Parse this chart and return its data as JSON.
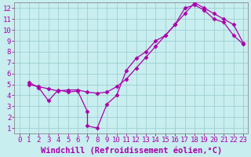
{
  "background_color": "#c8eef0",
  "grid_color": "#9fcfcf",
  "line_color": "#aa00aa",
  "marker": "D",
  "marker_size": 2.5,
  "line_width": 0.9,
  "xlim": [
    -0.5,
    23.5
  ],
  "ylim": [
    0.5,
    12.5
  ],
  "xticks": [
    0,
    1,
    2,
    3,
    4,
    5,
    6,
    7,
    8,
    9,
    10,
    11,
    12,
    13,
    14,
    15,
    16,
    17,
    18,
    19,
    20,
    21,
    22,
    23
  ],
  "yticks": [
    1,
    2,
    3,
    4,
    5,
    6,
    7,
    8,
    9,
    10,
    11,
    12
  ],
  "xlabel": "Windchill (Refroidissement éolien,°C)",
  "xlabel_fontsize": 7.5,
  "tick_fontsize": 6.5,
  "line1_x": [
    1,
    2,
    3,
    4,
    5,
    6,
    7,
    7,
    8,
    9,
    10,
    11,
    12,
    13,
    14,
    15,
    16,
    17,
    18,
    19,
    20,
    21,
    22,
    23
  ],
  "line1_y": [
    5.2,
    4.7,
    3.5,
    4.5,
    4.3,
    4.4,
    2.5,
    1.2,
    1.0,
    3.2,
    4.0,
    6.3,
    7.4,
    8.0,
    9.0,
    9.5,
    10.5,
    12.0,
    12.3,
    11.8,
    11.0,
    10.7,
    9.5,
    8.7
  ],
  "line2_x": [
    1,
    2,
    3,
    4,
    5,
    6,
    7,
    8,
    9,
    10,
    11,
    12,
    13,
    14,
    15,
    16,
    17,
    18,
    19,
    20,
    21,
    22,
    23
  ],
  "line2_y": [
    5.0,
    4.8,
    4.6,
    4.4,
    4.5,
    4.5,
    4.3,
    4.2,
    4.3,
    4.8,
    5.5,
    6.5,
    7.5,
    8.5,
    9.5,
    10.5,
    11.5,
    12.5,
    12.0,
    11.5,
    11.0,
    10.5,
    8.8
  ]
}
